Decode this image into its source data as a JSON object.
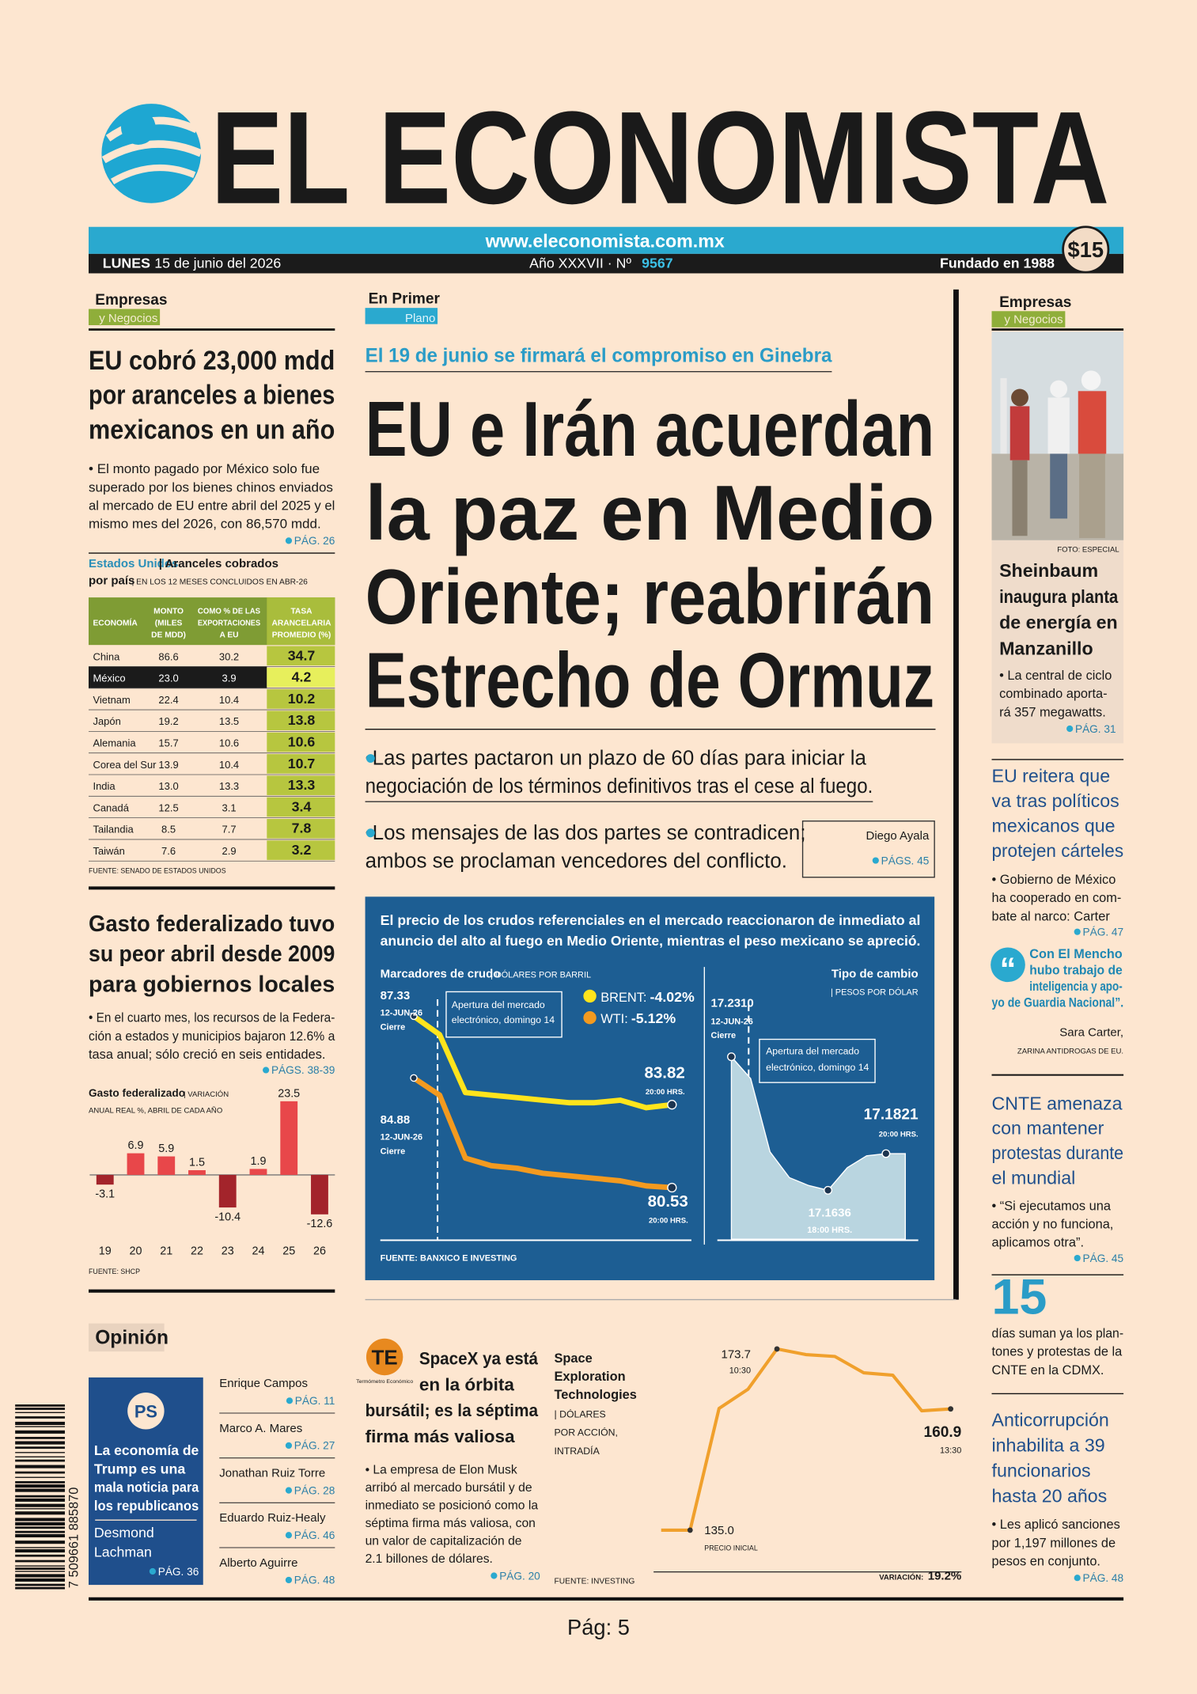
{
  "header": {
    "title": "EL ECONOMISTA",
    "url": "www.eleconomista.com.mx",
    "day": "LUNES",
    "date": "15 de junio del 2026",
    "edition": "Año XXXVII · Nº",
    "number": "9567",
    "founded": "Fundado en 1988",
    "price": "$15"
  },
  "left": {
    "section": [
      "Empresas",
      "y Negocios"
    ],
    "story1": {
      "headline": [
        "EU cobró 23,000 mdd",
        "por aranceles a bienes",
        "mexicanos en un año"
      ],
      "summary": [
        "• El monto pagado por México solo fue",
        "superado por los bienes chinos enviados",
        "al mercado de EU entre abril del 2025 y el",
        "mismo mes del 2026, con 86,570 mdd."
      ],
      "page": "PÁG. 26"
    },
    "table": {
      "title": "Estados Unidos",
      "subtitle": "| Aranceles cobrados",
      "subtitle2": "por país",
      "note": "| EN LOS 12 MESES CONCLUIDOS EN ABR-26",
      "columns": [
        [
          "ECONOMÍA"
        ],
        [
          "MONTO",
          "(MILES",
          "DE MDD)"
        ],
        [
          "COMO % DE LAS",
          "EXPORTACIONES",
          "A EU"
        ],
        [
          "TASA",
          "ARANCELARIA",
          "PROMEDIO (%)"
        ]
      ],
      "rows": [
        [
          "China",
          "86.6",
          "30.2",
          "34.7"
        ],
        [
          "México",
          "23.0",
          "3.9",
          "4.2"
        ],
        [
          "Vietnam",
          "22.4",
          "10.4",
          "10.2"
        ],
        [
          "Japón",
          "19.2",
          "13.5",
          "13.8"
        ],
        [
          "Alemania",
          "15.7",
          "10.6",
          "10.6"
        ],
        [
          "Corea del Sur",
          "13.9",
          "10.4",
          "10.7"
        ],
        [
          "India",
          "13.0",
          "13.3",
          "13.3"
        ],
        [
          "Canadá",
          "12.5",
          "3.1",
          "3.4"
        ],
        [
          "Tailandia",
          "8.5",
          "7.7",
          "7.8"
        ],
        [
          "Taiwán",
          "7.6",
          "2.9",
          "3.2"
        ]
      ],
      "source": "FUENTE: SENADO DE ESTADOS UNIDOS"
    },
    "story2": {
      "headline": [
        "Gasto federalizado tuvo",
        "su peor abril desde 2009",
        "para gobiernos locales"
      ],
      "summary": [
        "• En el cuarto mes, los recursos de la Federa-",
        "ción a estados y municipios bajaron 12.6% a",
        "tasa anual; sólo creció en seis entidades."
      ],
      "page": "PÁGS. 38-39"
    },
    "chart": {
      "type": "bar",
      "title": "Gasto federalizado",
      "subtitle": [
        "| VARIACIÓN",
        "ANUAL REAL %, ABRIL DE CADA AÑO"
      ],
      "categories": [
        "19",
        "20",
        "21",
        "22",
        "23",
        "24",
        "25",
        "26"
      ],
      "values": [
        -3.1,
        6.9,
        5.9,
        1.5,
        -10.4,
        1.9,
        23.5,
        -12.6
      ],
      "ylim": [
        -15,
        25
      ],
      "colors": {
        "positive": "#e8474a",
        "negative": "#a3242b"
      },
      "source": "FUENTE: SHCP"
    },
    "opinion": {
      "title": "Opinión",
      "feature": {
        "logo": "PS",
        "headline": [
          "La economía de",
          "Trump es una",
          "mala noticia para",
          "los republicanos"
        ],
        "author": [
          "Desmond",
          "Lachman"
        ],
        "page": "PÁG. 36"
      },
      "columnists": [
        {
          "name": "Enrique Campos",
          "page": "PÁG. 11"
        },
        {
          "name": "Marco A. Mares",
          "page": "PÁG. 27"
        },
        {
          "name": "Jonathan Ruiz Torre",
          "page": "PÁG. 28"
        },
        {
          "name": "Eduardo Ruiz-Healy",
          "page": "PÁG. 46"
        },
        {
          "name": "Alberto Aguirre",
          "page": "PÁG. 48"
        }
      ]
    },
    "barcode": "7 509661 885870"
  },
  "center": {
    "section": [
      "En Primer",
      "Plano"
    ],
    "kicker": "El 19 de junio se firmará el compromiso en Ginebra",
    "headline": [
      "EU e Irán acuerdan",
      "la paz en Medio",
      "Oriente; reabrirán",
      "Estrecho de Ormuz"
    ],
    "bullets": [
      [
        "•Las partes pactaron un plazo de 60 días para iniciar la",
        "negociación de los términos definitivos tras el cese al fuego."
      ],
      [
        "•Los mensajes de las dos partes se contradicen;",
        "ambos se proclaman vencedores del conflicto."
      ]
    ],
    "byline": "Diego Ayala",
    "page": "PÁGS. 45",
    "infographic": {
      "intro": [
        "El precio de los crudos referenciales en el mercado reaccionaron de inmediato al",
        "anuncio del alto al fuego en Medio Oriente, mientras el peso mexicano se apreció."
      ],
      "crude": {
        "type": "line",
        "title": "Marcadores de crudo",
        "subtitle": "| DÓLARES POR BARRIL",
        "ylim": [
          79,
          88
        ],
        "note": [
          "Apertura del mercado",
          "electrónico, domingo 14"
        ],
        "series": [
          {
            "name": "BRENT:",
            "change": "-4.02%",
            "color": "#ffe41c",
            "values": [
              87.33,
              86.6,
              84.3,
              84.2,
              84.1,
              84.0,
              83.9,
              83.9,
              84.0,
              83.7,
              83.82
            ],
            "start_note": [
              "12-JUN-26",
              "Cierre"
            ],
            "end_note": "20:00 HRS."
          },
          {
            "name": "WTI:",
            "change": "-5.12%",
            "color": "#f39a1f",
            "values": [
              84.88,
              84.2,
              81.7,
              81.4,
              81.3,
              81.1,
              81.0,
              80.9,
              80.8,
              80.6,
              80.53
            ],
            "start_note": [
              "12-JUN-26",
              "Cierre"
            ],
            "end_note": "20:00 HRS."
          }
        ]
      },
      "peso": {
        "type": "area",
        "title": "Tipo de cambio",
        "subtitle": "| PESOS POR DÓLAR",
        "ylim": [
          17.14,
          17.26
        ],
        "color": "#b9d5e0",
        "values": [
          17.231,
          17.22,
          17.183,
          17.17,
          17.166,
          17.1636,
          17.175,
          17.181,
          17.1821,
          17.1821
        ],
        "value_labels": [
          "17.2310",
          null,
          null,
          null,
          null,
          "17.1636",
          null,
          null,
          "17.1821",
          null
        ],
        "start_note": [
          "12-JUN-26",
          "Cierre"
        ],
        "low_note": "18:00 HRS.",
        "end_note": "20:00 HRS.",
        "note": [
          "Apertura del mercado",
          "electrónico, domingo 14"
        ]
      },
      "source": "FUENTE: BANXICO E INVESTING"
    },
    "spacex": {
      "logo": "TE",
      "logo_caption": "Termómetro Económico",
      "headline": [
        "SpaceX ya está",
        "en la órbita",
        "bursátil; es la séptima",
        "firma más valiosa"
      ],
      "summary": [
        "• La empresa de Elon Musk",
        "arribó al mercado bursátil y de",
        "inmediato se posicionó como la",
        "séptima firma más valiosa, con",
        "un valor de capitalización de",
        "2.1 billones de dólares."
      ],
      "page": "PÁG. 20",
      "chart": {
        "type": "line",
        "title": [
          "Space",
          "Exploration",
          "Technologies"
        ],
        "subtitle": [
          "| DÓLARES",
          "POR ACCIÓN,",
          "INTRADÍA"
        ],
        "ylim": [
          130,
          178
        ],
        "color": "#f0a02c",
        "values": [
          135.0,
          135.0,
          161.0,
          165.1,
          173.7,
          172.5,
          172.1,
          168.6,
          168.1,
          160.5,
          160.9
        ],
        "value_labels": [
          null,
          "135.0",
          null,
          null,
          "173.7",
          null,
          null,
          null,
          null,
          null,
          "160.9"
        ],
        "notes": {
          "start": "PRECIO INICIAL",
          "high": "10:30",
          "end": "13:30"
        },
        "variation_label": "VARIACIÓN:",
        "variation": "19.2%",
        "source": "FUENTE: INVESTING"
      }
    }
  },
  "right": {
    "section": [
      "Empresas",
      "y Negocios"
    ],
    "photo_credit": "FOTO: ESPECIAL",
    "story1": {
      "headline": [
        "Sheinbaum",
        "inaugura planta",
        "de energía en",
        "Manzanillo"
      ],
      "summary": [
        "• La central de ciclo",
        "combinado aporta-",
        "rá 357 megawatts."
      ],
      "page": "PÁG. 31"
    },
    "story2": {
      "headline": [
        "EU reitera que",
        "va tras políticos",
        "mexicanos que",
        "protejen cárteles"
      ],
      "summary": [
        "• Gobierno de México",
        "ha cooperado en com-",
        "bate al narco: Carter"
      ],
      "page": "PÁG. 47"
    },
    "quote": {
      "text": [
        "Con El Mencho",
        "hubo trabajo de",
        "inteligencia y apo-",
        "yo de Guardia Nacional”."
      ],
      "author": "Sara Carter,",
      "role": "ZARINA ANTIDROGAS DE EU."
    },
    "story3": {
      "headline": [
        "CNTE amenaza",
        "con mantener",
        "protestas durante",
        "el mundial"
      ],
      "summary": [
        "• “Si ejecutamos una",
        "acción y no funciona,",
        "aplicamos otra”."
      ],
      "page": "PÁG. 45"
    },
    "stat": {
      "value": "15",
      "text": [
        "días suman ya los plan-",
        "tones y protestas de la",
        "CNTE en la CDMX."
      ]
    },
    "story4": {
      "headline": [
        "Anticorrupción",
        "inhabilita a 39",
        "funcionarios",
        "hasta 20 años"
      ],
      "summary": [
        "• Les aplicó sanciones",
        "por 1,197 millones de",
        "pesos en conjunto."
      ],
      "page": "PÁG. 48"
    }
  },
  "footer": "Pág: 5"
}
